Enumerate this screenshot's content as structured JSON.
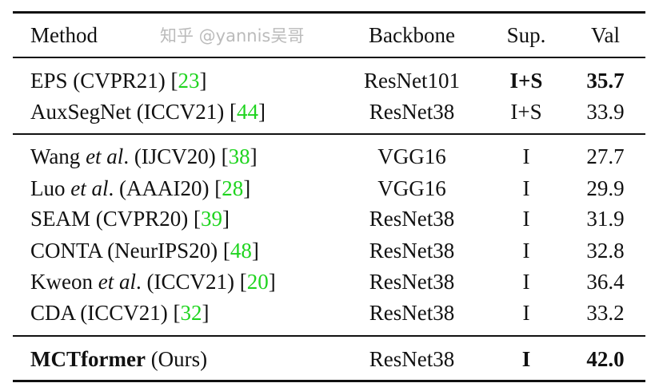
{
  "header": {
    "method": "Method",
    "backbone": "Backbone",
    "sup": "Sup.",
    "val": "Val"
  },
  "groups": [
    [
      {
        "name": "EPS",
        "venue": " (CVPR21) ",
        "ref": "23",
        "backbone": "ResNet101",
        "sup": "I+S",
        "val": "35.7",
        "bold_sup": true,
        "bold_val": true
      },
      {
        "name": "AuxSegNet",
        "venue": " (ICCV21) ",
        "ref": "44",
        "backbone": "ResNet38",
        "sup": "I+S",
        "val": "33.9"
      }
    ],
    [
      {
        "name": "Wang",
        "etal": " et al",
        "venue": ". (IJCV20) ",
        "ref": "38",
        "backbone": "VGG16",
        "sup": "I",
        "val": "27.7"
      },
      {
        "name": "Luo",
        "etal": " et al",
        "venue": ". (AAAI20) ",
        "ref": "28",
        "backbone": "VGG16",
        "sup": "I",
        "val": "29.9"
      },
      {
        "name": "SEAM",
        "venue": " (CVPR20) ",
        "ref": "39",
        "backbone": "ResNet38",
        "sup": "I",
        "val": "31.9"
      },
      {
        "name": "CONTA",
        "venue": " (NeurIPS20) ",
        "ref": "48",
        "backbone": "ResNet38",
        "sup": "I",
        "val": "32.8"
      },
      {
        "name": "Kweon",
        "etal": " et al",
        "venue": ". (ICCV21) ",
        "ref": "20",
        "backbone": "ResNet38",
        "sup": "I",
        "val": "36.4"
      },
      {
        "name": "CDA",
        "venue": " (ICCV21) ",
        "ref": "32",
        "backbone": "ResNet38",
        "sup": "I",
        "val": "33.2"
      }
    ],
    [
      {
        "name": "MCTformer",
        "venue": " (Ours)",
        "backbone": "ResNet38",
        "sup": "I",
        "val": "42.0",
        "bold_name": true,
        "bold_sup": true,
        "bold_val": true
      }
    ]
  ],
  "ref_color": "#1fd41f",
  "watermark": "知乎 @yannis吴哥"
}
